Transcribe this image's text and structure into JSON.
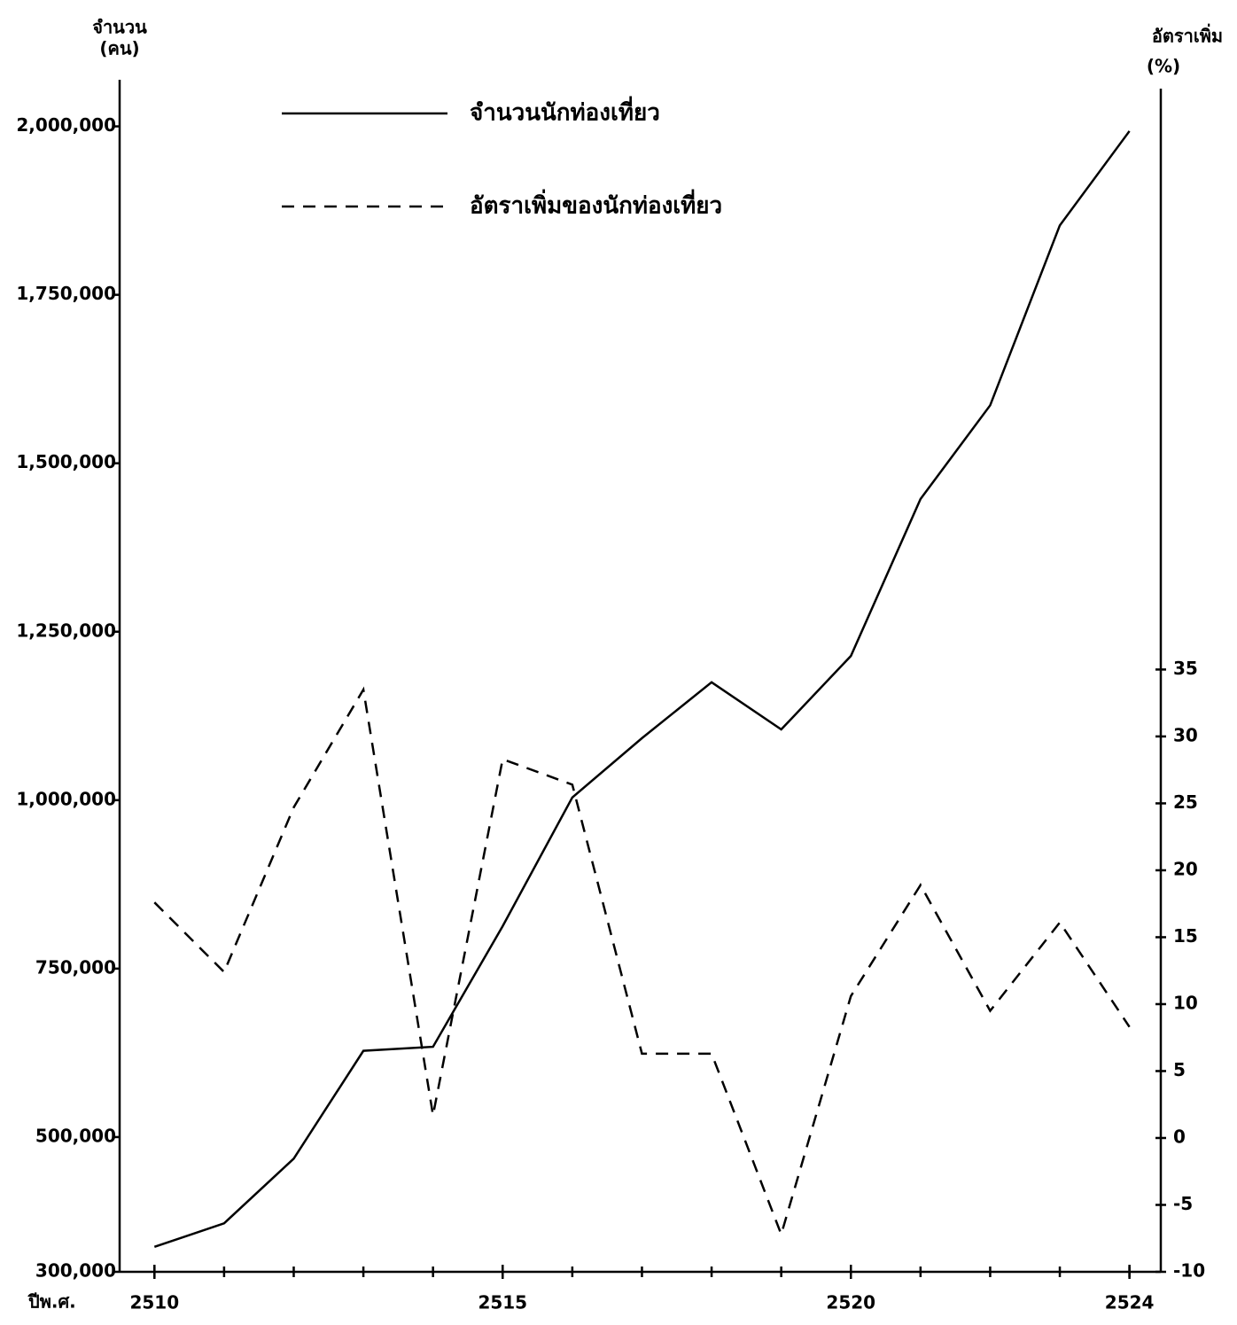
{
  "chart_data": {
    "type": "line",
    "y_label_lines": [
      "จำนวน",
      "(คน)"
    ],
    "y2_label_lines": [
      "อัตราเพิ่ม",
      "(%)"
    ],
    "x_label": "ปีพ.ศ.",
    "x": [
      2510,
      2511,
      2512,
      2513,
      2514,
      2515,
      2516,
      2517,
      2518,
      2519,
      2520,
      2521,
      2522,
      2523,
      2524
    ],
    "series": [
      {
        "name": "จำนวนนักท่องเที่ยว",
        "color": "#000000",
        "dash": "solid",
        "values": [
          337000,
          372000,
          468000,
          628000,
          634000,
          813000,
          1004000,
          1092000,
          1175000,
          1105000,
          1214000,
          1447000,
          1586000,
          1853000,
          1993000
        ]
      },
      {
        "name": "อัตราเพิ่มของนักท่องเที่ยว",
        "color": "#000000",
        "dash": "dashed",
        "axis": "y2",
        "values": [
          17.6,
          12.4,
          24.7,
          33.5,
          1.7,
          28.3,
          26.4,
          6.3,
          6.3,
          -7.2,
          10.6,
          18.9,
          9.5,
          16.1,
          8.3
        ]
      }
    ],
    "xlim": [
      2509.5,
      2524.45
    ],
    "xticks": [
      2510,
      2515,
      2520,
      2524
    ],
    "ylim": [
      300000,
      2056000
    ],
    "yticks": [
      {
        "value": 300000,
        "label": "300,000"
      },
      {
        "value": 500000,
        "label": "500,000"
      },
      {
        "value": 750000,
        "label": "750,000"
      },
      {
        "value": 1000000,
        "label": "1,000,000"
      },
      {
        "value": 1250000,
        "label": "1,250,000"
      },
      {
        "value": 1500000,
        "label": "1,500,000"
      },
      {
        "value": 1750000,
        "label": "1,750,000"
      },
      {
        "value": 2000000,
        "label": "2,000,000"
      }
    ],
    "y2lim": [
      -10,
      78.4
    ],
    "y2ticks": [
      -10,
      -5,
      0,
      5,
      10,
      15,
      20,
      25,
      30,
      35
    ],
    "grid": false
  }
}
